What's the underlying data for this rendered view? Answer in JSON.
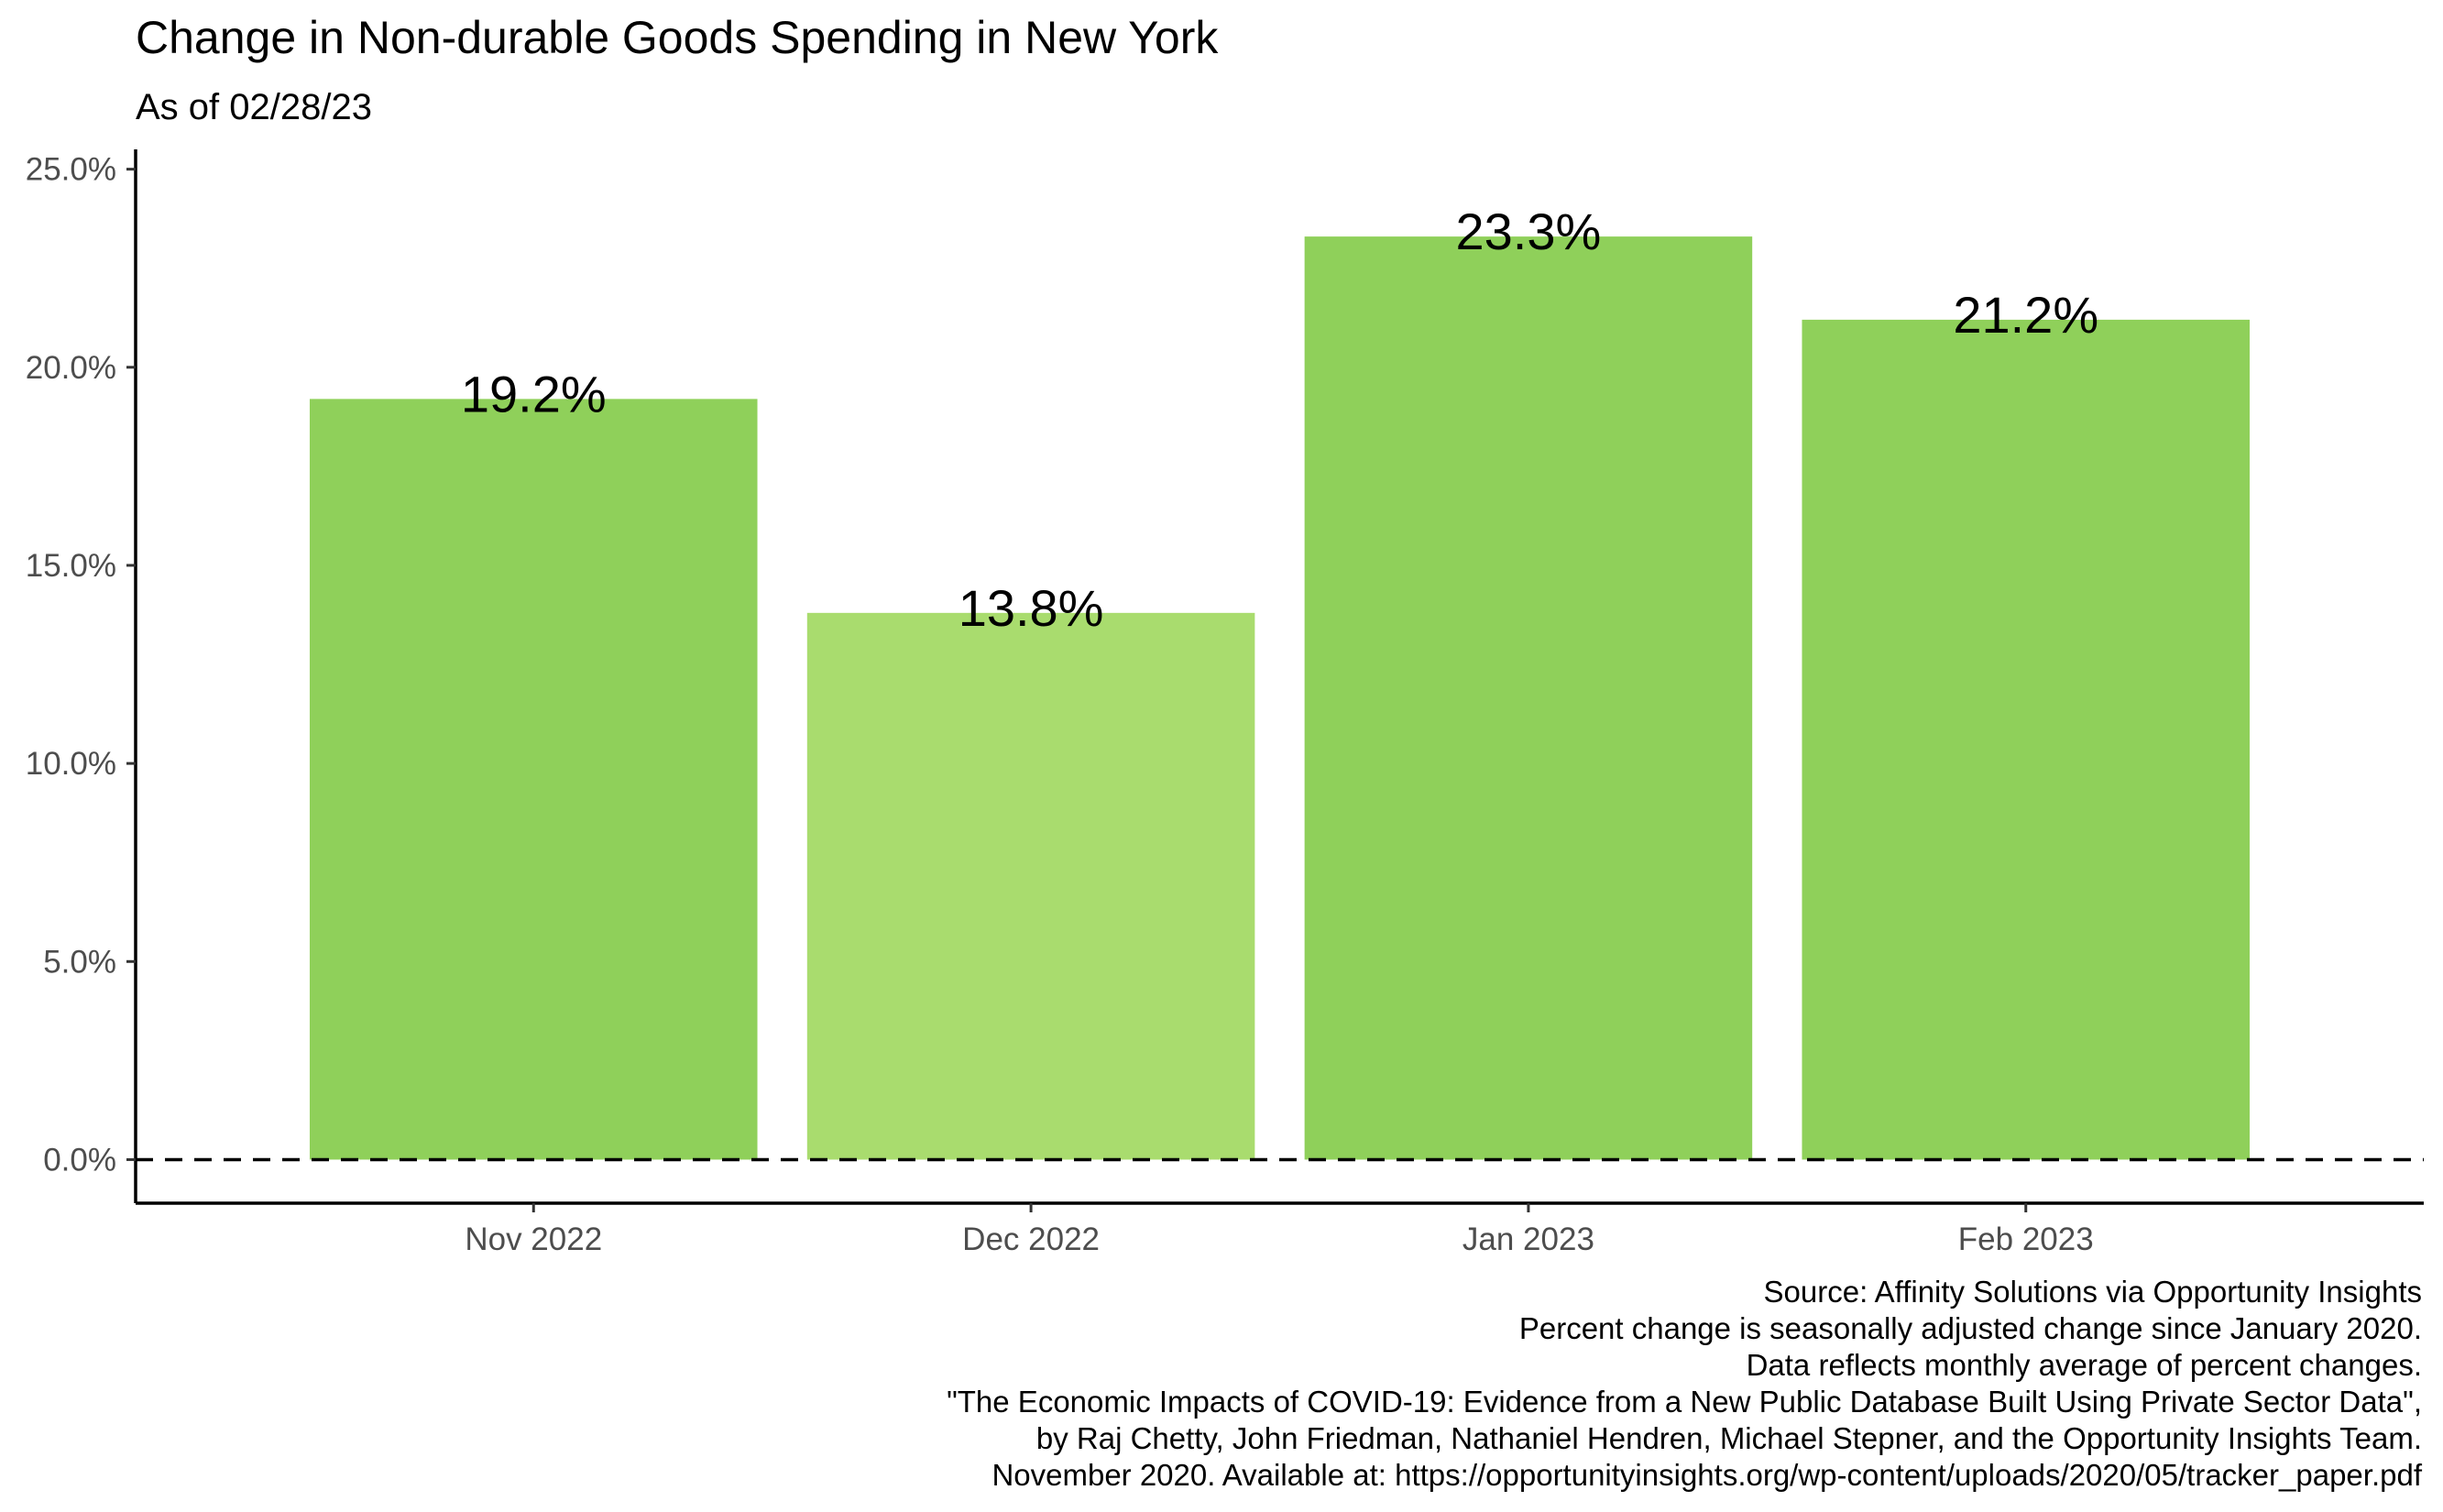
{
  "chart_data": {
    "type": "bar",
    "title": "Change in Non-durable Goods Spending in New York",
    "subtitle": "As of 02/28/23",
    "categories": [
      "Nov 2022",
      "Dec 2022",
      "Jan 2023",
      "Feb 2023"
    ],
    "values": [
      19.2,
      13.8,
      23.3,
      21.2
    ],
    "data_labels": [
      "19.2%",
      "13.8%",
      "23.3%",
      "21.2%"
    ],
    "bar_colors": [
      "#8fd05a",
      "#a9dc6e",
      "#8fd05a",
      "#8fd05a"
    ],
    "xlabel": "",
    "ylabel": "",
    "ylim": [
      -1.1,
      25.5
    ],
    "yticks": [
      0,
      5,
      10,
      15,
      20,
      25
    ],
    "ytick_labels": [
      "0.0%",
      "5.0%",
      "10.0%",
      "15.0%",
      "20.0%",
      "25.0%"
    ],
    "reference_line": {
      "y": 0,
      "style": "dashed",
      "color": "#000000"
    },
    "grid": false,
    "legend": "none",
    "caption_lines": [
      "Source: Affinity Solutions via Opportunity Insights",
      "Percent change is seasonally adjusted change since January 2020.",
      "Data reflects monthly average of percent changes.",
      "\"The Economic Impacts of COVID-19: Evidence from a New Public Database Built Using Private Sector Data\",",
      "by Raj Chetty, John Friedman, Nathaniel Hendren, Michael Stepner, and the Opportunity Insights Team.",
      "November 2020. Available at: https://opportunityinsights.org/wp-content/uploads/2020/05/tracker_paper.pdf"
    ]
  }
}
